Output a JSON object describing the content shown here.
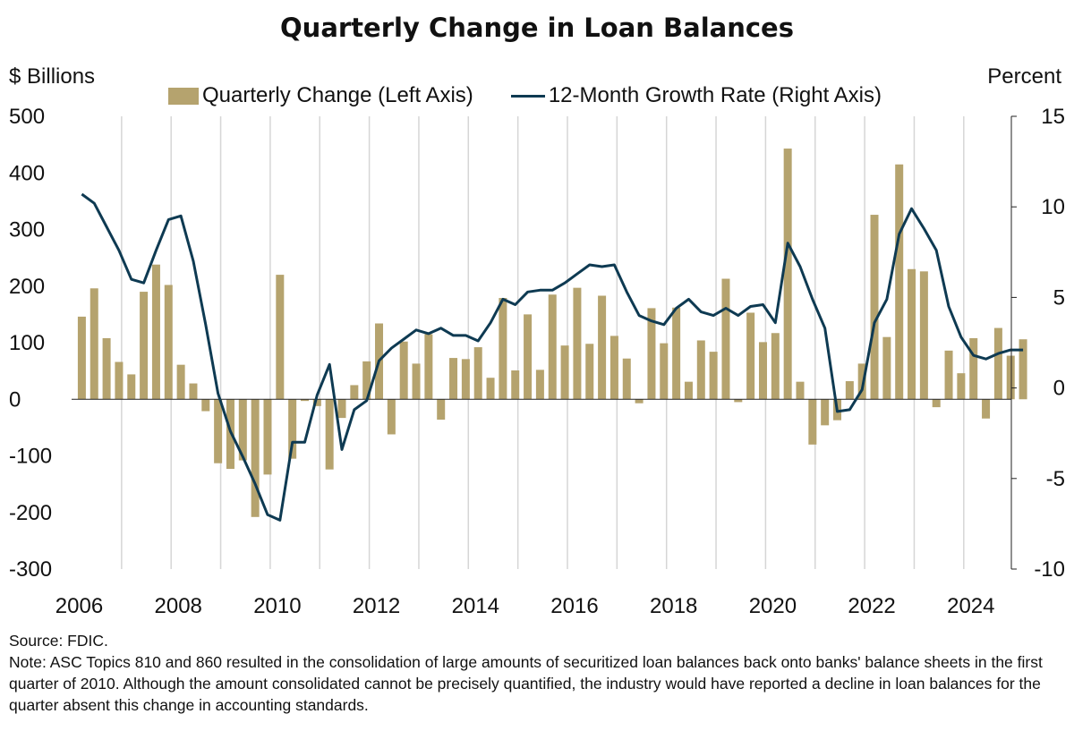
{
  "colors": {
    "bars": "#b5a36e",
    "line": "#0e3a52",
    "grid": "#d6d6d6",
    "axis": "#222222"
  },
  "header": {
    "title": "Quarterly Change in Loan Balances",
    "left_unit": "$ Billions",
    "right_unit": "Percent"
  },
  "legend": {
    "bar_label": "Quarterly Change (Left Axis)",
    "line_label": "12-Month Growth Rate (Right Axis)"
  },
  "chart_data": {
    "type": "bar+line",
    "title": "Quarterly Change in Loan Balances",
    "ylabel_left": "$ Billions",
    "ylabel_right": "Percent",
    "ylim_left": [
      -300,
      500
    ],
    "ylim_right": [
      -10,
      15
    ],
    "yticks_left": [
      "500",
      "400",
      "300",
      "200",
      "100",
      "0",
      "-100",
      "-200",
      "-300"
    ],
    "yticks_right": [
      "15",
      "10",
      "5",
      "0",
      "-5",
      "-10"
    ],
    "xticks": [
      "2006",
      "2008",
      "2010",
      "2012",
      "2014",
      "2016",
      "2018",
      "2020",
      "2022",
      "2024"
    ],
    "start_year": 2006,
    "grid": "vertical lines at each year",
    "series": [
      {
        "name": "Quarterly Change (Left Axis)",
        "type": "bar",
        "axis": "left",
        "values": [
          146,
          196,
          108,
          66,
          44,
          190,
          238,
          202,
          61,
          28,
          -21,
          -113,
          -123,
          -108,
          -208,
          -133,
          220,
          -105,
          -3,
          -12,
          -124,
          -33,
          25,
          67,
          134,
          -62,
          102,
          63,
          115,
          -36,
          73,
          71,
          92,
          38,
          179,
          51,
          150,
          52,
          185,
          95,
          197,
          98,
          183,
          112,
          72,
          -7,
          161,
          99,
          162,
          31,
          104,
          84,
          213,
          -5,
          153,
          101,
          117,
          443,
          31,
          -80,
          -46,
          -37,
          32,
          63,
          326,
          110,
          415,
          230,
          226,
          -14,
          86,
          46,
          108,
          -34,
          126,
          77,
          106
        ]
      },
      {
        "name": "12-Month Growth Rate (Right Axis)",
        "type": "line",
        "axis": "right",
        "values": [
          10.7,
          10.2,
          8.9,
          7.6,
          6.0,
          5.8,
          7.6,
          9.3,
          9.5,
          7.0,
          3.5,
          -0.3,
          -2.4,
          -3.8,
          -5.3,
          -7.0,
          -7.3,
          -3.0,
          -3.0,
          -0.4,
          1.3,
          -3.4,
          -1.2,
          -0.7,
          1.5,
          2.2,
          2.7,
          3.2,
          3.0,
          3.3,
          2.9,
          2.9,
          2.6,
          3.6,
          4.9,
          4.6,
          5.3,
          5.4,
          5.4,
          5.8,
          6.3,
          6.8,
          6.7,
          6.8,
          5.3,
          4.0,
          3.7,
          3.5,
          4.4,
          4.9,
          4.2,
          4.0,
          4.4,
          4.0,
          4.5,
          4.6,
          3.6,
          8.0,
          6.7,
          4.9,
          3.3,
          -1.3,
          -1.2,
          -0.1,
          3.6,
          4.9,
          8.5,
          9.9,
          8.8,
          7.6,
          4.5,
          2.8,
          1.8,
          1.6,
          1.9,
          2.1,
          2.1
        ]
      }
    ]
  },
  "footnotes": {
    "source": "Source: FDIC.",
    "note": "Note: ASC Topics 810 and 860 resulted in the consolidation of large amounts of securitized loan balances back onto banks' balance sheets in the first quarter of 2010. Although the amount consolidated cannot be precisely quantified, the industry would have reported a decline in loan balances for the quarter absent this change in accounting standards."
  }
}
